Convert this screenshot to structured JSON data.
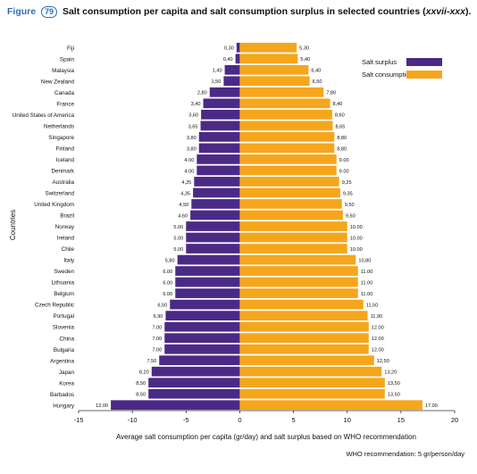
{
  "header": {
    "figure_label": "Figure",
    "figure_number": "79",
    "title": "Salt consumption per capita and salt consumption surplus in selected countries (",
    "title_ref": "xxvii-xxx",
    "title_end": ")."
  },
  "colors": {
    "surplus": "#4b2a86",
    "consumption": "#f5a61c"
  },
  "footnote": "WHO recommendation: 5 gr/person/day",
  "chart_data": {
    "type": "bar",
    "orientation": "horizontal",
    "title": "Salt consumption per capita and salt consumption surplus in selected countries (xxvii-xxx).",
    "xlabel": "Average salt consumption per capita (gr/day) and salt surplus based on WHO recommendation",
    "ylabel": "Countries",
    "xlim": [
      -15,
      20
    ],
    "xticks": [
      -15,
      -10,
      -5,
      0,
      5,
      10,
      15,
      20
    ],
    "legend_position": "top-right",
    "grid": false,
    "categories": [
      "Fiji",
      "Spain",
      "Malaysia",
      "New Zealand",
      "Canada",
      "France",
      "United States of America",
      "Netherlands",
      "Singapore",
      "Finland",
      "Iceland",
      "Denmark",
      "Australia",
      "Switzerland",
      "United Kingdom",
      "Brazil",
      "Norway",
      "Ireland",
      "Chile",
      "Italy",
      "Sweden",
      "Lithuania",
      "Belgium",
      "Czech Republic",
      "Portugal",
      "Slovenia",
      "China",
      "Bulgaria",
      "Argentina",
      "Japan",
      "Korea",
      "Barbados",
      "Hungary"
    ],
    "series": [
      {
        "name": "Salt surplus",
        "values": [
          0.3,
          0.4,
          1.4,
          1.5,
          2.8,
          3.4,
          3.6,
          3.65,
          3.8,
          3.8,
          4.0,
          4.0,
          4.25,
          4.35,
          4.5,
          4.6,
          5.0,
          5.0,
          5.0,
          5.8,
          6.0,
          6.0,
          6.0,
          6.5,
          6.9,
          7.0,
          7.0,
          7.0,
          7.5,
          8.2,
          8.5,
          8.5,
          12.0
        ],
        "labels": [
          "0,30",
          "0,40",
          "1,40",
          "1,50",
          "2,80",
          "3,40",
          "3,60",
          "3,65",
          "3,80",
          "3,80",
          "4.00",
          "4.00",
          "4,25",
          "4,35",
          "4,50",
          "4,60",
          "5.00",
          "5.00",
          "5.00",
          "5,80",
          "6.00",
          "6.00",
          "6.00",
          "6,50",
          "6,90",
          "7.00",
          "7.00",
          "7.00",
          "7,50",
          "8,20",
          "8,50",
          "8,50",
          "12.00"
        ]
      },
      {
        "name": "Salt consumption",
        "values": [
          5.3,
          5.4,
          6.4,
          6.5,
          7.8,
          8.4,
          8.6,
          8.65,
          8.8,
          8.8,
          9.0,
          9.0,
          9.25,
          9.35,
          9.5,
          9.6,
          10.0,
          10.0,
          10.0,
          10.8,
          11.0,
          11.0,
          11.0,
          11.5,
          11.9,
          12.0,
          12.0,
          12.0,
          12.5,
          13.2,
          13.5,
          13.5,
          17.0
        ],
        "labels": [
          "5,30",
          "5,40",
          "6,40",
          "6,50",
          "7,80",
          "8,40",
          "8,60",
          "8,65",
          "8,80",
          "8,80",
          "9.00",
          "9.00",
          "9,25",
          "9,35",
          "9,50",
          "9,60",
          "10.00",
          "10.00",
          "10.00",
          "10,80",
          "11.00",
          "11.00",
          "11.00",
          "11,50",
          "11,90",
          "12.00",
          "12.00",
          "12.00",
          "12,50",
          "13,20",
          "13,50",
          "13,50",
          "17.00"
        ]
      }
    ]
  }
}
